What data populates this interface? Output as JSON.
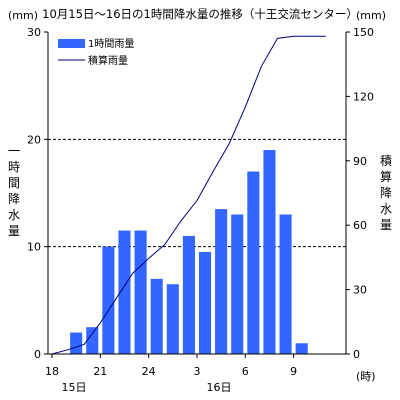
{
  "chart_data": {
    "type": "bar",
    "title": "10月15日～16日の1時間降水量の推移（十王交流センター）",
    "y_unit_left": "(mm)",
    "y_unit_right": "(mm)",
    "x_unit": "(時)",
    "ylabel_left": [
      "一",
      "時",
      "間",
      "降",
      "水",
      "量"
    ],
    "ylabel_right": [
      "積",
      "算",
      "降",
      "水",
      "量"
    ],
    "ylim_left": [
      0,
      30
    ],
    "ylim_right": [
      0,
      150
    ],
    "yticks_left": [
      0,
      10,
      20,
      30
    ],
    "yticks_right": [
      0,
      30,
      60,
      90,
      120,
      150
    ],
    "x_tick_labels": [
      "18",
      "21",
      "24",
      "3",
      "6",
      "9"
    ],
    "date_labels": [
      {
        "hour_index": 0,
        "text": "15日"
      },
      {
        "hour_index": 9,
        "text": "16日"
      }
    ],
    "grid": "dashed horizontal at 10 and 20 (left axis)",
    "legend_position": "top-left",
    "hours": [
      "18",
      "19",
      "20",
      "21",
      "22",
      "23",
      "24",
      "1",
      "2",
      "3",
      "4",
      "5",
      "6",
      "7",
      "8",
      "9",
      "10",
      "11"
    ],
    "series": [
      {
        "name": "1時間雨量",
        "kind": "bar",
        "axis": "left",
        "color": "#3366ff",
        "values": [
          0,
          2,
          2.5,
          10,
          11.5,
          11.5,
          7,
          6.5,
          11,
          9.5,
          13.5,
          13,
          17,
          19,
          13,
          1,
          0,
          0
        ]
      },
      {
        "name": "積算雨量",
        "kind": "line",
        "axis": "right",
        "color": "#000080",
        "values": [
          0,
          2,
          4.5,
          14.5,
          26,
          37.5,
          44.5,
          51,
          62,
          71.5,
          85,
          98,
          115,
          134,
          147,
          148,
          148,
          148
        ]
      }
    ]
  }
}
